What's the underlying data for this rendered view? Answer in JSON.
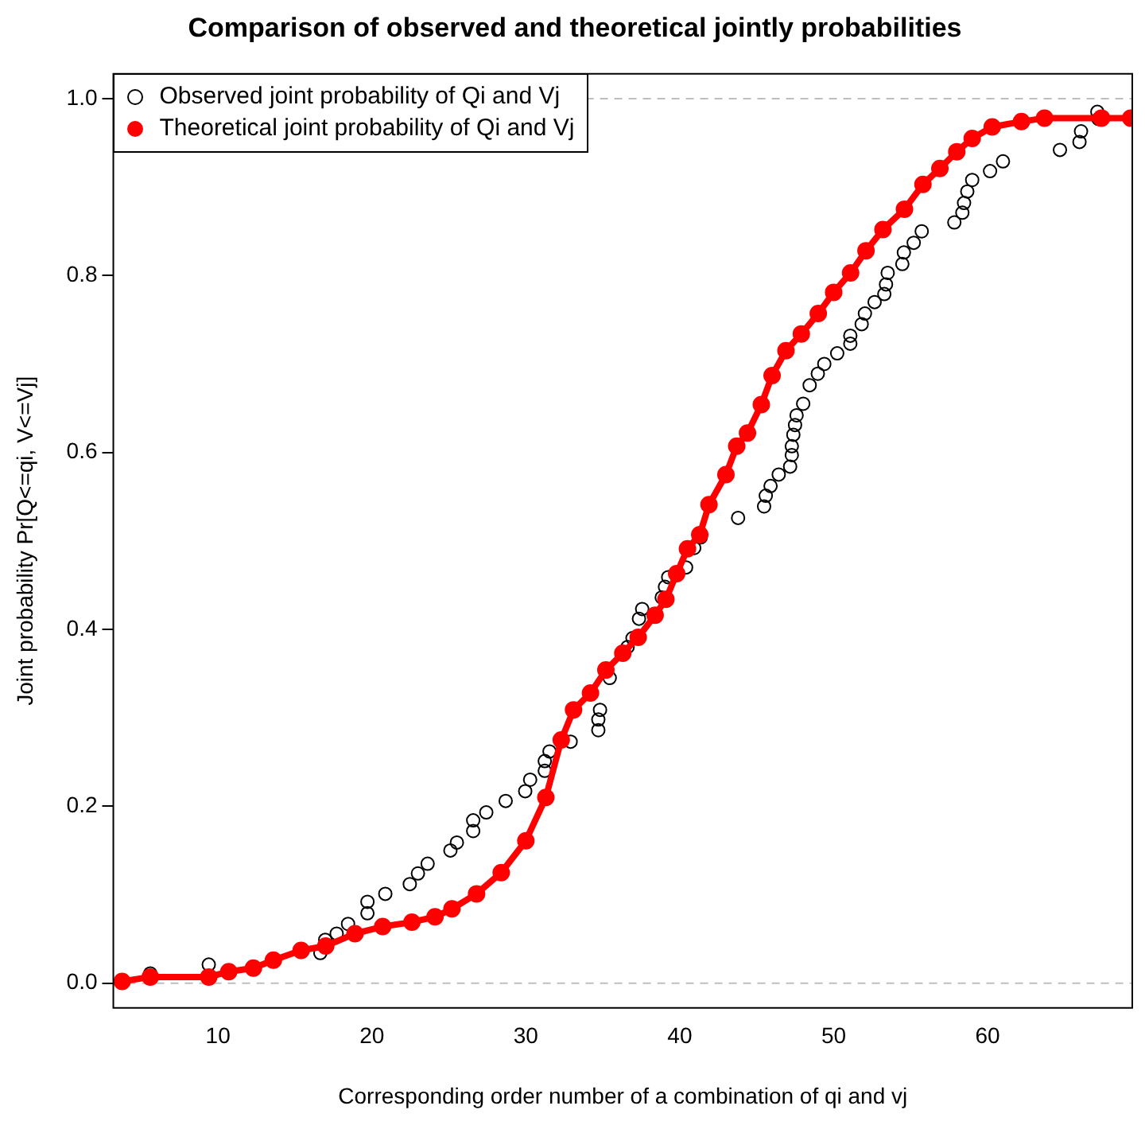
{
  "chart_data": {
    "type": "scatter",
    "title": "Comparison of observed and theoretical jointly probabilities",
    "xlabel": "Corresponding order number of a combination of qi and vj",
    "ylabel": "Joint probability Pr[Q<=qi, V<=Vj]",
    "xlim": [
      3.2,
      69.4
    ],
    "ylim": [
      -0.028,
      1.028
    ],
    "xticks": [
      10,
      20,
      30,
      40,
      50,
      60
    ],
    "yticks": [
      {
        "value": 0,
        "label": "0.0"
      },
      {
        "value": 0.2,
        "label": "0.2"
      },
      {
        "value": 0.4,
        "label": "0.4"
      },
      {
        "value": 0.6,
        "label": "0.6"
      },
      {
        "value": 0.8,
        "label": "0.8"
      },
      {
        "value": 1,
        "label": "1.0"
      }
    ],
    "legend": "top left",
    "grid": false,
    "marker": "circle",
    "ref_lines": [
      {
        "axis": "y",
        "value": 0,
        "color": "#bebebe",
        "line_style": "dashed"
      },
      {
        "axis": "y",
        "value": 1,
        "color": "#bebebe",
        "line_style": "dashed"
      }
    ],
    "series": [
      {
        "name": "Observed joint probability of Qi and Vj",
        "color": "#000000",
        "x": [
          5.6,
          9.4,
          16.65,
          16.97,
          17.71,
          18.45,
          19.71,
          19.71,
          20.87,
          22.46,
          22.99,
          23.62,
          25.1,
          25.52,
          26.58,
          26.58,
          27.43,
          28.69,
          29.96,
          30.28,
          31.23,
          31.23,
          31.54,
          32.91,
          34.71,
          34.71,
          34.82,
          35.45,
          36.61,
          36.93,
          37.35,
          37.56,
          38.83,
          39.04,
          39.25,
          40.41,
          40.94,
          41.36,
          43.79,
          45.48,
          45.59,
          45.9,
          46.43,
          47.17,
          47.28,
          47.28,
          47.38,
          47.49,
          47.59,
          48.02,
          48.44,
          48.97,
          49.39,
          50.23,
          51.08,
          51.08,
          51.82,
          52.03,
          52.66,
          53.29,
          53.4,
          53.51,
          54.46,
          54.56,
          55.2,
          55.72,
          57.84,
          58.36,
          58.47,
          58.68,
          59.0,
          60.16,
          61.0,
          64.7,
          65.97,
          66.07,
          67.2,
          67.13
        ],
        "values": [
          0.011,
          0.021,
          0.034,
          0.049,
          0.056,
          0.067,
          0.079,
          0.092,
          0.101,
          0.112,
          0.124,
          0.135,
          0.15,
          0.159,
          0.172,
          0.184,
          0.193,
          0.206,
          0.217,
          0.23,
          0.24,
          0.251,
          0.262,
          0.273,
          0.286,
          0.298,
          0.309,
          0.345,
          0.38,
          0.39,
          0.412,
          0.423,
          0.436,
          0.448,
          0.459,
          0.47,
          0.492,
          0.504,
          0.526,
          0.539,
          0.551,
          0.562,
          0.575,
          0.584,
          0.597,
          0.607,
          0.62,
          0.631,
          0.642,
          0.655,
          0.676,
          0.689,
          0.7,
          0.712,
          0.723,
          0.732,
          0.745,
          0.757,
          0.77,
          0.779,
          0.79,
          0.803,
          0.813,
          0.826,
          0.837,
          0.85,
          0.86,
          0.871,
          0.882,
          0.895,
          0.908,
          0.918,
          0.929,
          0.942,
          0.951,
          0.963,
          0.977,
          0.985
        ]
      },
      {
        "name": "Theoretical joint probability of Qi and Vj",
        "type": "line",
        "color": "#ff0000",
        "x": [
          3.77,
          5.6,
          9.4,
          10.7,
          12.3,
          13.6,
          15.4,
          17.0,
          18.9,
          20.7,
          22.6,
          24.1,
          25.2,
          26.8,
          28.4,
          30.0,
          31.3,
          32.3,
          33.1,
          34.2,
          35.2,
          36.3,
          37.3,
          38.4,
          39.1,
          39.8,
          40.5,
          41.3,
          41.9,
          43.0,
          43.7,
          44.4,
          45.3,
          46.0,
          46.9,
          47.9,
          49.0,
          50.0,
          51.1,
          52.1,
          53.2,
          54.6,
          55.8,
          56.9,
          58.0,
          59.0,
          60.3,
          62.2,
          63.7,
          67.4,
          69.3
        ],
        "values": [
          0.002,
          0.007,
          0.007,
          0.013,
          0.017,
          0.026,
          0.037,
          0.042,
          0.056,
          0.064,
          0.069,
          0.075,
          0.084,
          0.101,
          0.125,
          0.161,
          0.21,
          0.275,
          0.309,
          0.328,
          0.354,
          0.373,
          0.391,
          0.416,
          0.434,
          0.463,
          0.491,
          0.507,
          0.541,
          0.575,
          0.607,
          0.622,
          0.654,
          0.687,
          0.715,
          0.734,
          0.757,
          0.781,
          0.803,
          0.828,
          0.852,
          0.875,
          0.903,
          0.921,
          0.94,
          0.955,
          0.968,
          0.974,
          0.978,
          0.978,
          0.978
        ]
      }
    ]
  }
}
